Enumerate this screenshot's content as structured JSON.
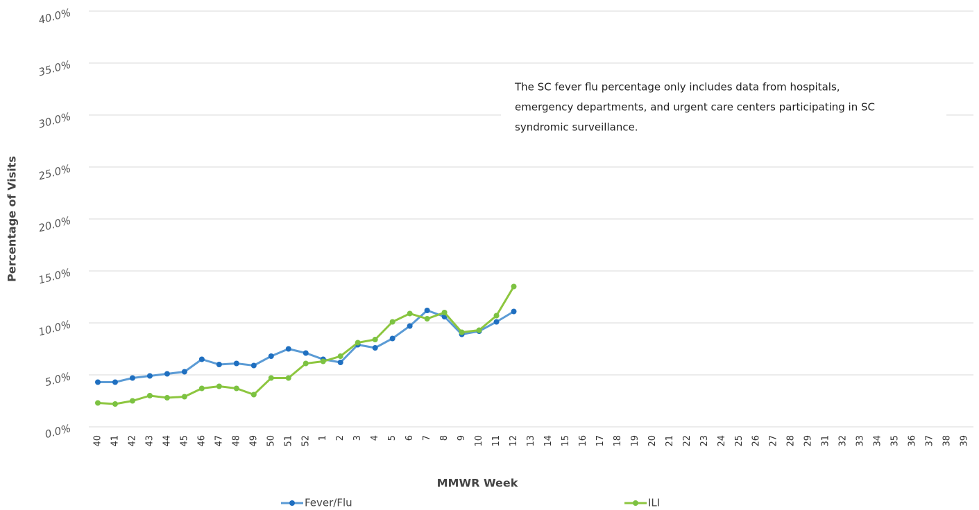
{
  "chart_data": {
    "type": "line",
    "x_label": "MMWR Week",
    "y_label": "Percentage of Visits",
    "annotation": [
      "The SC fever flu percentage only includes data from hospitals,",
      "emergency departments, and urgent care centers participating in SC",
      "syndromic surveillance."
    ],
    "categories": [
      "40",
      "41",
      "42",
      "43",
      "44",
      "45",
      "46",
      "47",
      "48",
      "49",
      "50",
      "51",
      "52",
      "1",
      "2",
      "3",
      "4",
      "5",
      "6",
      "7",
      "8",
      "9",
      "10",
      "11",
      "12",
      "13",
      "14",
      "15",
      "16",
      "17",
      "18",
      "19",
      "20",
      "21",
      "22",
      "23",
      "24",
      "25",
      "26",
      "27",
      "28",
      "29",
      "31",
      "32",
      "33",
      "34",
      "35",
      "36",
      "37",
      "38",
      "39"
    ],
    "series": [
      {
        "name": "Fever/Flu",
        "color": "#5b9bd5",
        "marker_color": "#1f6fc0",
        "values": [
          4.3,
          4.3,
          4.7,
          4.9,
          5.1,
          5.3,
          6.5,
          6.0,
          6.1,
          5.9,
          6.8,
          7.5,
          7.1,
          6.5,
          6.2,
          7.9,
          7.6,
          8.5,
          9.7,
          11.2,
          10.6,
          8.9,
          9.2,
          10.1,
          11.1,
          null,
          null,
          null,
          null,
          null,
          null,
          null,
          null,
          null,
          null,
          null,
          null,
          null,
          null,
          null,
          null,
          null,
          null,
          null,
          null,
          null,
          null,
          null,
          null,
          null,
          null
        ]
      },
      {
        "name": "ILI",
        "color": "#8dc63f",
        "marker_color": "#7cc242",
        "values": [
          2.3,
          2.2,
          2.5,
          3.0,
          2.8,
          2.9,
          3.7,
          3.9,
          3.7,
          3.1,
          4.7,
          4.7,
          6.1,
          6.3,
          6.8,
          8.1,
          8.4,
          10.1,
          10.9,
          10.4,
          11.0,
          9.1,
          9.3,
          10.7,
          13.5,
          null,
          null,
          null,
          null,
          null,
          null,
          null,
          null,
          null,
          null,
          null,
          null,
          null,
          null,
          null,
          null,
          null,
          null,
          null,
          null,
          null,
          null,
          null,
          null,
          null,
          null
        ]
      }
    ],
    "ylim": [
      0,
      40
    ],
    "yticks": [
      {
        "value": 0,
        "label": "0.0%"
      },
      {
        "value": 5,
        "label": "5.0%"
      },
      {
        "value": 10,
        "label": "10.0%"
      },
      {
        "value": 15,
        "label": "15.0%"
      },
      {
        "value": 20,
        "label": "20.0%"
      },
      {
        "value": 25,
        "label": "25.0%"
      },
      {
        "value": 30,
        "label": "30.0%"
      },
      {
        "value": 35,
        "label": "35.0%"
      },
      {
        "value": 40,
        "label": "40.0%"
      }
    ],
    "grid": true,
    "legend": "bottom"
  }
}
